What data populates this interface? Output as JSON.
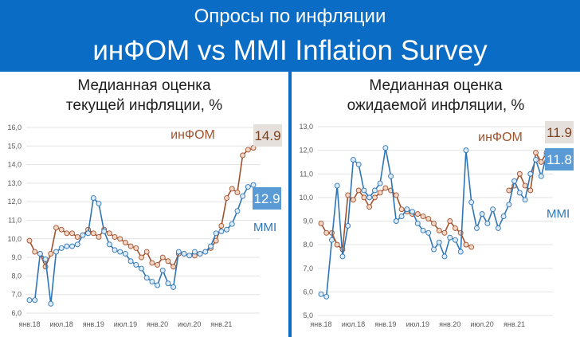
{
  "header": {
    "line1": "Опросы по инфляции",
    "line2": "инФОМ vs MMI Inflation Survey"
  },
  "colors": {
    "background": "#0a6cc4",
    "infom_line": "#a0522d",
    "infom_marker": "#f2d5c4",
    "mmi_line": "#2e75b6",
    "mmi_marker": "#ddeaf7",
    "infom_badge": "#e6e0dc",
    "mmi_badge": "#5b9bd5"
  },
  "chart_data": [
    {
      "type": "line",
      "title": "Медианная оценка\nтекущей инфляции, %",
      "title_lines": [
        "Медианная оценка",
        "текущей инфляции, %"
      ],
      "ylim": [
        6.0,
        16.0
      ],
      "y_ticks": [
        "6,0",
        "7,0",
        "8,0",
        "9,0",
        "10,0",
        "11,0",
        "12,0",
        "13,0",
        "14,0",
        "15,0",
        "16,0"
      ],
      "x_ticks": [
        "янв.18",
        "июл.18",
        "янв.19",
        "июл.19",
        "янв.20",
        "июл.20",
        "янв.21"
      ],
      "x_tick_index": [
        0,
        6,
        12,
        18,
        24,
        30,
        36
      ],
      "n_points": 43,
      "grid": true,
      "series": [
        {
          "name": "инФОМ",
          "last_value_label": "14.9",
          "values": [
            9.9,
            9.3,
            9.2,
            8.5,
            9.2,
            10.6,
            10.5,
            10.3,
            10.3,
            10.1,
            10.2,
            10.5,
            10.3,
            10.1,
            10.5,
            10.3,
            10.1,
            10.0,
            9.8,
            9.6,
            9.5,
            9.0,
            9.3,
            8.7,
            8.6,
            9.0,
            8.8,
            8.5,
            9.2,
            9.2,
            null,
            9.1,
            9.2,
            9.3,
            9.5,
            9.9,
            10.7,
            12.2,
            12.7,
            12.5,
            14.5,
            14.8,
            14.9
          ]
        },
        {
          "name": "MMI",
          "last_value_label": "12.9",
          "values": [
            6.7,
            6.7,
            9.2,
            8.9,
            6.5,
            9.3,
            9.5,
            9.6,
            9.6,
            9.7,
            10.2,
            10.3,
            12.2,
            11.9,
            10.4,
            9.7,
            9.4,
            9.3,
            9.2,
            8.8,
            8.6,
            8.4,
            7.9,
            7.7,
            7.5,
            8.3,
            7.6,
            7.4,
            9.3,
            9.2,
            9.1,
            9.3,
            9.2,
            9.3,
            9.6,
            10.3,
            10.4,
            10.5,
            10.8,
            11.5,
            12.3,
            12.8,
            12.9
          ]
        }
      ]
    },
    {
      "type": "line",
      "title": "Медианная оценка\nожидаемой инфляции, %",
      "title_lines": [
        "Медианная оценка",
        "ожидаемой инфляции, %"
      ],
      "ylim": [
        5.0,
        13.0
      ],
      "y_ticks": [
        "5,0",
        "6,0",
        "7,0",
        "8,0",
        "9,0",
        "10,0",
        "11,0",
        "12,0",
        "13,0"
      ],
      "x_ticks": [
        "янв.18",
        "июл.18",
        "янв.19",
        "июл.19",
        "янв.20",
        "июл.20",
        "янв.21"
      ],
      "x_tick_index": [
        0,
        6,
        12,
        18,
        24,
        30,
        36
      ],
      "n_points": 43,
      "grid": true,
      "series": [
        {
          "name": "инФОМ",
          "last_value_label": "11.9",
          "values": [
            8.9,
            8.5,
            8.5,
            8.0,
            7.8,
            10.1,
            9.9,
            10.3,
            10.0,
            9.6,
            10.0,
            10.2,
            10.4,
            10.3,
            10.1,
            9.5,
            9.4,
            9.3,
            9.3,
            9.2,
            9.1,
            8.9,
            8.6,
            8.5,
            9.0,
            8.7,
            8.5,
            8.0,
            7.9,
            null,
            null,
            null,
            null,
            null,
            null,
            10.3,
            10.5,
            11.0,
            10.5,
            10.3,
            11.9,
            11.5,
            11.9
          ]
        },
        {
          "name": "MMI",
          "last_value_label": "11.8",
          "values": [
            5.9,
            5.8,
            8.2,
            10.5,
            7.5,
            8.8,
            11.6,
            11.4,
            10.3,
            10.0,
            10.3,
            10.6,
            12.1,
            10.9,
            9.0,
            9.2,
            9.5,
            9.4,
            8.9,
            8.6,
            8.5,
            7.8,
            8.1,
            7.5,
            8.3,
            8.2,
            7.7,
            12.0,
            9.8,
            8.7,
            9.3,
            8.9,
            9.5,
            8.7,
            9.2,
            9.7,
            10.7,
            10.2,
            9.9,
            11.0,
            11.6,
            10.9,
            11.8
          ]
        }
      ]
    }
  ]
}
